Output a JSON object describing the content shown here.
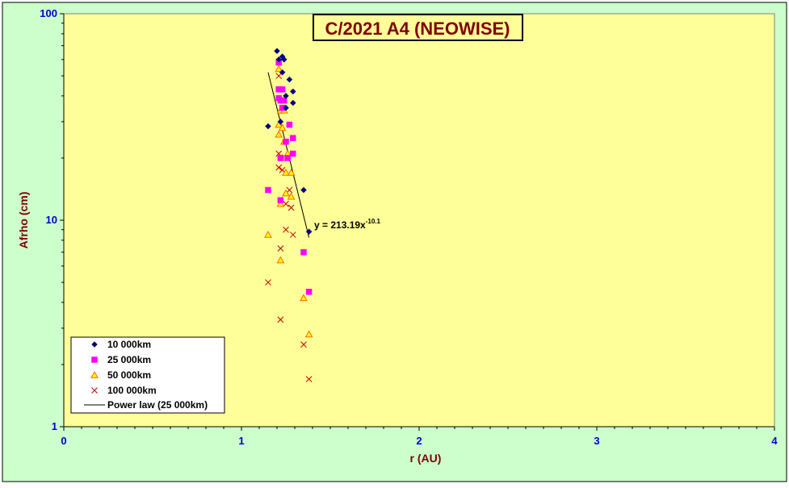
{
  "chart_data": {
    "type": "scatter",
    "title": "C/2021 A4 (NEOWISE)",
    "xlabel": "r (AU)",
    "ylabel": "Afrho (cm)",
    "xlim": [
      0,
      4
    ],
    "ylim": [
      1,
      100
    ],
    "y_scale": "log",
    "x_ticks": [
      "0",
      "1",
      "2",
      "3",
      "4"
    ],
    "y_ticks": [
      "1",
      "10",
      "100"
    ],
    "grid": false,
    "legend_position": "bottom-left",
    "colors": {
      "outer_background": "#ccffcc",
      "plot_background": "#ffff99",
      "axis_text": "#0000cc",
      "label_text": "#800000"
    },
    "series": [
      {
        "name": "10 000km",
        "marker": "diamond",
        "color": "#000080",
        "points": [
          [
            1.2,
            66
          ],
          [
            1.23,
            62
          ],
          [
            1.24,
            60
          ],
          [
            1.21,
            60
          ],
          [
            1.23,
            52
          ],
          [
            1.27,
            48
          ],
          [
            1.29,
            42
          ],
          [
            1.25,
            40
          ],
          [
            1.29,
            37
          ],
          [
            1.25,
            35
          ],
          [
            1.22,
            30
          ],
          [
            1.15,
            28.5
          ],
          [
            1.35,
            14
          ],
          [
            1.38,
            8.8
          ]
        ]
      },
      {
        "name": "25 000km",
        "marker": "square",
        "color": "#ff00ff",
        "points": [
          [
            1.21,
            58
          ],
          [
            1.21,
            43
          ],
          [
            1.23,
            43
          ],
          [
            1.21,
            39
          ],
          [
            1.22,
            38
          ],
          [
            1.24,
            38
          ],
          [
            1.23,
            35
          ],
          [
            1.27,
            29
          ],
          [
            1.29,
            25
          ],
          [
            1.25,
            24
          ],
          [
            1.29,
            21
          ],
          [
            1.22,
            20
          ],
          [
            1.26,
            20
          ],
          [
            1.15,
            14
          ],
          [
            1.22,
            12.5
          ],
          [
            1.35,
            7
          ],
          [
            1.38,
            4.5
          ]
        ]
      },
      {
        "name": "50 000km",
        "marker": "triangle",
        "color": "#ff6600",
        "points": [
          [
            1.21,
            54
          ],
          [
            1.22,
            34
          ],
          [
            1.24,
            34
          ],
          [
            1.21,
            29
          ],
          [
            1.23,
            28
          ],
          [
            1.21,
            26
          ],
          [
            1.24,
            24
          ],
          [
            1.26,
            21
          ],
          [
            1.23,
            20
          ],
          [
            1.25,
            17
          ],
          [
            1.28,
            17
          ],
          [
            1.25,
            13.5
          ],
          [
            1.28,
            13
          ],
          [
            1.22,
            12
          ],
          [
            1.15,
            8.5
          ],
          [
            1.22,
            6.4
          ],
          [
            1.35,
            4.2
          ],
          [
            1.38,
            2.8
          ]
        ]
      },
      {
        "name": "100 000km",
        "marker": "x",
        "color": "#c00000",
        "points": [
          [
            1.21,
            50
          ],
          [
            1.21,
            21
          ],
          [
            1.23,
            20
          ],
          [
            1.21,
            18
          ],
          [
            1.23,
            17.5
          ],
          [
            1.27,
            14
          ],
          [
            1.25,
            12
          ],
          [
            1.28,
            11.5
          ],
          [
            1.25,
            9
          ],
          [
            1.29,
            8.5
          ],
          [
            1.22,
            7.3
          ],
          [
            1.15,
            5
          ],
          [
            1.22,
            3.3
          ],
          [
            1.35,
            2.5
          ],
          [
            1.38,
            1.7
          ]
        ]
      }
    ],
    "trendline": {
      "name": "Power law (25 000km)",
      "color": "#000000",
      "coefficient": 213.19,
      "exponent": -10.1,
      "x_range": [
        1.15,
        1.38
      ],
      "label_prefix": "y = 213.19x",
      "label_exponent": "-10.1"
    }
  }
}
